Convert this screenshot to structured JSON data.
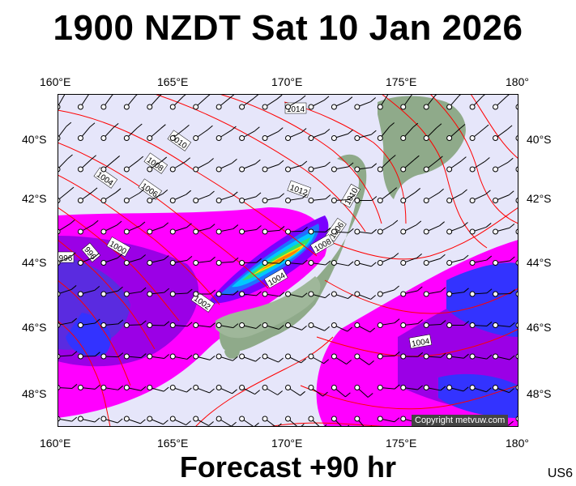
{
  "title": "1900 NZDT Sat 10 Jan 2026",
  "subtitle": "Forecast +90 hr",
  "code": "US6",
  "copyright": "Copyright metvuw.com",
  "lon_labels": [
    "160°E",
    "165°E",
    "170°E",
    "175°E",
    "180°"
  ],
  "lat_labels": [
    "40°S",
    "42°S",
    "44°S",
    "46°S",
    "48°S"
  ],
  "isobar_labels": [
    "1014",
    "1010",
    "1008",
    "1006",
    "1004",
    "1012",
    "1010",
    "1006",
    "1008",
    "1004",
    "1002",
    "1000",
    "996",
    "996",
    "1004"
  ],
  "colors": {
    "background": "#e6e6fa",
    "isobar": "#ff0000",
    "land": "#8faa8a",
    "rain_light": "#ff00ff",
    "rain_mid": "#8800dd",
    "rain_heavy": "#3333ff"
  },
  "symbols": {
    "station": "circle",
    "wind": "wind-barb"
  }
}
